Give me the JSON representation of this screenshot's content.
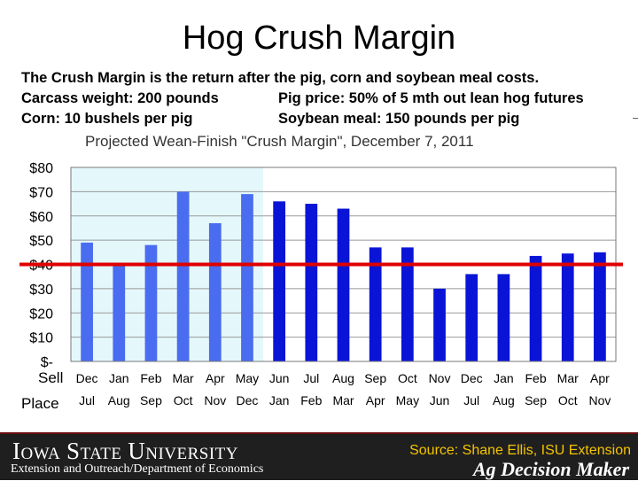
{
  "slide": {
    "title": "Hog Crush Margin",
    "description": [
      "The Crush Margin is the return after the pig, corn and soybean meal costs.",
      "Carcass weight: 200 pounds",
      "Pig price: 50% of 5 mth out lean hog futures",
      "Corn: 10 bushels per pig",
      "Soybean meal: 150 pounds per pig"
    ]
  },
  "footer": {
    "logo_text": "Iowa State University",
    "department": "Extension and Outreach/Department of Economics",
    "source": "Source: Shane Ellis, ISU Extension",
    "brand": "Ag Decision Maker"
  },
  "colors": {
    "bar_historical": "#4a6cf0",
    "bar_projected": "#0a14d6",
    "reference_line": "#e00000",
    "historical_shade": "#e4f8fc",
    "plot_background": "#ffffff",
    "grid": "#999999"
  },
  "chart_data": {
    "type": "bar",
    "title": "Projected Wean-Finish \"Crush Margin\", December 7, 2011",
    "y_ticks": [
      "$80",
      "$70",
      "$60",
      "$50",
      "$40",
      "$30",
      "$20",
      "$10",
      "$-"
    ],
    "ylim": [
      0,
      80
    ],
    "row_labels": [
      "Sell",
      "Place"
    ],
    "categories_sell": [
      "Dec",
      "Jan",
      "Feb",
      "Mar",
      "Apr",
      "May",
      "Jun",
      "Jul",
      "Aug",
      "Sep",
      "Oct",
      "Nov",
      "Dec",
      "Jan",
      "Feb",
      "Mar",
      "Apr"
    ],
    "categories_place": [
      "Jul",
      "Aug",
      "Sep",
      "Oct",
      "Nov",
      "Dec",
      "Jan",
      "Feb",
      "Mar",
      "Apr",
      "May",
      "Jun",
      "Jul",
      "Aug",
      "Sep",
      "Oct",
      "Nov"
    ],
    "values": [
      49,
      40,
      48,
      70,
      57,
      69,
      66,
      65,
      63,
      47,
      47,
      30,
      36,
      36,
      43.5,
      44.5,
      45
    ],
    "historical_count": 6,
    "reference_value": 40,
    "grid": true
  }
}
